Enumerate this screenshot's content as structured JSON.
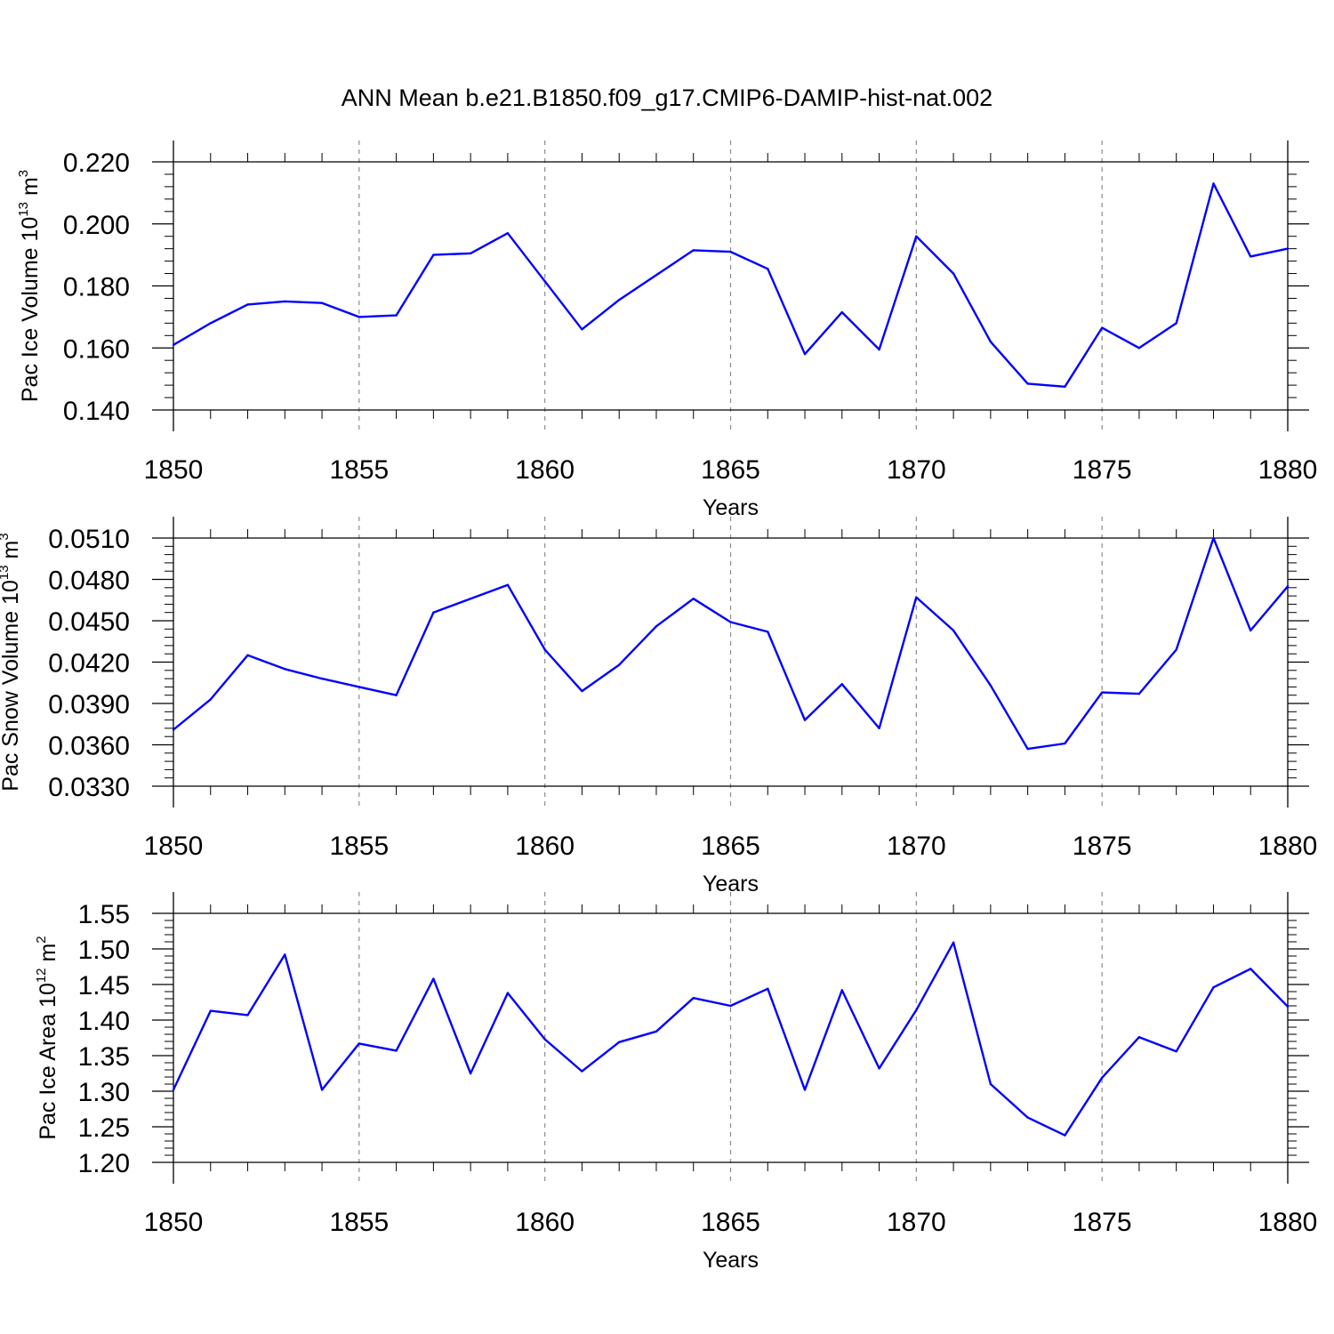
{
  "title": "ANN Mean b.e21.B1850.f09_g17.CMIP6-DAMIP-hist-nat.002",
  "colors": {
    "series": "#0000ff",
    "axis": "#000000",
    "grid": "#8c8c8c"
  },
  "chart_data": [
    {
      "type": "line",
      "xlabel": "Years",
      "ylabel": {
        "text": "Pac Ice Volume 10",
        "exponent": "13",
        "unit": " m",
        "unit_exponent": "3"
      },
      "xlim": [
        1850,
        1880
      ],
      "ylim": [
        0.14,
        0.22
      ],
      "xticks": [
        "1850",
        "1855",
        "1860",
        "1865",
        "1870",
        "1875",
        "1880"
      ],
      "yticks": [
        "0.140",
        "0.160",
        "0.180",
        "0.200",
        "0.220"
      ],
      "grid": "vertical dashed at major x ticks",
      "x": [
        1850,
        1851,
        1852,
        1853,
        1854,
        1855,
        1856,
        1857,
        1858,
        1859,
        1860,
        1861,
        1862,
        1863,
        1864,
        1865,
        1866,
        1867,
        1868,
        1869,
        1870,
        1871,
        1872,
        1873,
        1874,
        1875,
        1876,
        1877,
        1878,
        1879,
        1880
      ],
      "values": [
        0.161,
        0.168,
        0.174,
        0.175,
        0.1745,
        0.17,
        0.1705,
        0.19,
        0.1905,
        0.197,
        0.1815,
        0.166,
        0.1755,
        0.1835,
        0.1915,
        0.191,
        0.1855,
        0.158,
        0.1715,
        0.1595,
        0.196,
        0.184,
        0.162,
        0.1485,
        0.1475,
        0.1665,
        0.16,
        0.168,
        0.213,
        0.1895,
        0.192
      ]
    },
    {
      "type": "line",
      "xlabel": "Years",
      "ylabel": {
        "text": "Pac Snow Volume 10",
        "exponent": "13",
        "unit": " m",
        "unit_exponent": "3"
      },
      "xlim": [
        1850,
        1880
      ],
      "ylim": [
        0.033,
        0.051
      ],
      "xticks": [
        "1850",
        "1855",
        "1860",
        "1865",
        "1870",
        "1875",
        "1880"
      ],
      "yticks": [
        "0.0330",
        "0.0360",
        "0.0390",
        "0.0420",
        "0.0450",
        "0.0480",
        "0.0510"
      ],
      "grid": "vertical dashed at major x ticks",
      "x": [
        1850,
        1851,
        1852,
        1853,
        1854,
        1855,
        1856,
        1857,
        1858,
        1859,
        1860,
        1861,
        1862,
        1863,
        1864,
        1865,
        1866,
        1867,
        1868,
        1869,
        1870,
        1871,
        1872,
        1873,
        1874,
        1875,
        1876,
        1877,
        1878,
        1879,
        1880
      ],
      "values": [
        0.0371,
        0.0393,
        0.0425,
        0.0415,
        0.0408,
        0.0402,
        0.0396,
        0.0456,
        0.0466,
        0.0476,
        0.0429,
        0.0399,
        0.0418,
        0.0446,
        0.0466,
        0.0449,
        0.0442,
        0.0378,
        0.0404,
        0.0372,
        0.0467,
        0.0443,
        0.0403,
        0.0357,
        0.0361,
        0.0398,
        0.0397,
        0.0429,
        0.051,
        0.0443,
        0.0475
      ]
    },
    {
      "type": "line",
      "xlabel": "Years",
      "ylabel": {
        "text": "Pac Ice Area 10",
        "exponent": "12",
        "unit": " m",
        "unit_exponent": "2"
      },
      "xlim": [
        1850,
        1880
      ],
      "ylim": [
        1.2,
        1.55
      ],
      "xticks": [
        "1850",
        "1855",
        "1860",
        "1865",
        "1870",
        "1875",
        "1880"
      ],
      "yticks": [
        "1.20",
        "1.25",
        "1.30",
        "1.35",
        "1.40",
        "1.45",
        "1.50",
        "1.55"
      ],
      "grid": "vertical dashed at major x ticks",
      "x": [
        1850,
        1851,
        1852,
        1853,
        1854,
        1855,
        1856,
        1857,
        1858,
        1859,
        1860,
        1861,
        1862,
        1863,
        1864,
        1865,
        1866,
        1867,
        1868,
        1869,
        1870,
        1871,
        1872,
        1873,
        1874,
        1875,
        1876,
        1877,
        1878,
        1879,
        1880
      ],
      "values": [
        1.302,
        1.413,
        1.407,
        1.492,
        1.302,
        1.367,
        1.357,
        1.458,
        1.325,
        1.438,
        1.373,
        1.328,
        1.369,
        1.384,
        1.431,
        1.42,
        1.444,
        1.302,
        1.442,
        1.332,
        1.414,
        1.509,
        1.31,
        1.263,
        1.238,
        1.319,
        1.376,
        1.356,
        1.446,
        1.472,
        1.419
      ]
    }
  ]
}
